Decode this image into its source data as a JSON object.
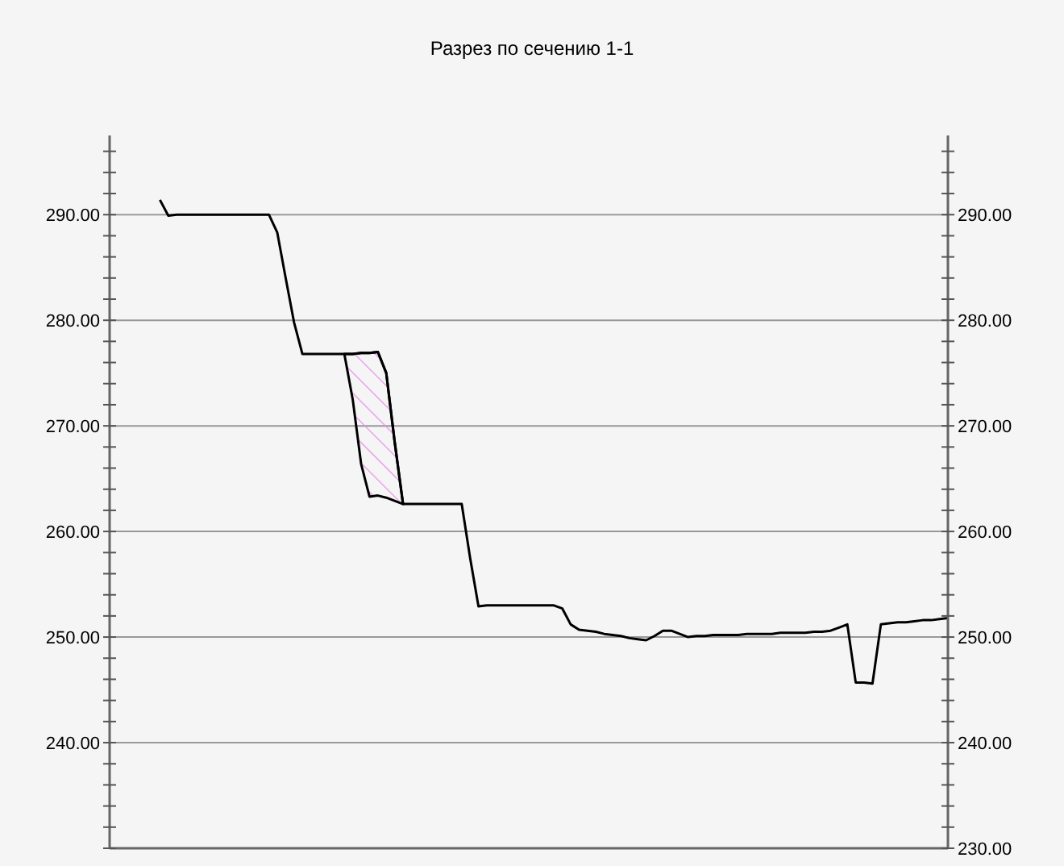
{
  "chart_data": {
    "type": "line",
    "title": "Разрез по сечению 1-1",
    "categories": [
      null,
      null,
      null,
      null,
      null,
      null,
      null,
      null,
      null,
      null,
      null,
      null,
      null,
      null,
      null,
      null,
      null,
      null,
      null,
      null,
      null,
      null,
      null,
      null,
      null,
      null,
      null,
      null,
      null,
      null,
      null,
      null,
      null,
      null,
      null,
      null,
      null,
      null,
      null,
      null,
      null,
      null,
      null,
      null,
      null,
      null,
      null,
      null,
      null,
      null,
      null,
      null,
      null,
      null,
      null,
      null,
      null,
      null,
      null,
      null,
      null,
      null,
      null,
      null,
      null,
      null,
      null,
      null,
      null,
      null,
      null,
      null,
      null,
      null,
      null,
      null,
      null,
      null,
      null,
      null,
      null,
      null,
      null,
      null,
      null,
      null,
      null,
      null,
      null,
      null,
      null,
      null,
      null,
      null,
      null,
      null,
      null,
      null,
      null,
      null,
      null
    ],
    "ylim": [
      230,
      297.5
    ],
    "y2lim": [
      230,
      297.5
    ],
    "tick_labels": "y",
    "grid": "y",
    "marker": "none",
    "line_style": "solid",
    "yticks": [
      {
        "value": 230,
        "label": null
      },
      {
        "value": 232,
        "label": null
      },
      {
        "value": 234,
        "label": null
      },
      {
        "value": 236,
        "label": null
      },
      {
        "value": 238,
        "label": null
      },
      {
        "value": 240,
        "label": "240.00"
      },
      {
        "value": 242,
        "label": null
      },
      {
        "value": 244,
        "label": null
      },
      {
        "value": 246,
        "label": null
      },
      {
        "value": 248,
        "label": null
      },
      {
        "value": 250,
        "label": "250.00"
      },
      {
        "value": 252,
        "label": null
      },
      {
        "value": 254,
        "label": null
      },
      {
        "value": 256,
        "label": null
      },
      {
        "value": 258,
        "label": null
      },
      {
        "value": 260,
        "label": "260.00"
      },
      {
        "value": 262,
        "label": null
      },
      {
        "value": 264,
        "label": null
      },
      {
        "value": 266,
        "label": null
      },
      {
        "value": 268,
        "label": null
      },
      {
        "value": 270,
        "label": "270.00"
      },
      {
        "value": 272,
        "label": null
      },
      {
        "value": 274,
        "label": null
      },
      {
        "value": 276,
        "label": null
      },
      {
        "value": 278,
        "label": null
      },
      {
        "value": 280,
        "label": "280.00"
      },
      {
        "value": 282,
        "label": null
      },
      {
        "value": 284,
        "label": null
      },
      {
        "value": 286,
        "label": null
      },
      {
        "value": 288,
        "label": null
      },
      {
        "value": 290,
        "label": "290.00"
      },
      {
        "value": 292,
        "label": null
      },
      {
        "value": 294,
        "label": null
      },
      {
        "value": 296,
        "label": null
      }
    ],
    "y2ticks": [
      {
        "value": 230,
        "label": "230.00"
      },
      {
        "value": 232,
        "label": null
      },
      {
        "value": 234,
        "label": null
      },
      {
        "value": 236,
        "label": null
      },
      {
        "value": 238,
        "label": null
      },
      {
        "value": 240,
        "label": "240.00"
      },
      {
        "value": 242,
        "label": null
      },
      {
        "value": 244,
        "label": null
      },
      {
        "value": 246,
        "label": null
      },
      {
        "value": 248,
        "label": null
      },
      {
        "value": 250,
        "label": "250.00"
      },
      {
        "value": 252,
        "label": null
      },
      {
        "value": 254,
        "label": null
      },
      {
        "value": 256,
        "label": null
      },
      {
        "value": 258,
        "label": null
      },
      {
        "value": 260,
        "label": "260.00"
      },
      {
        "value": 262,
        "label": null
      },
      {
        "value": 264,
        "label": null
      },
      {
        "value": 266,
        "label": null
      },
      {
        "value": 268,
        "label": null
      },
      {
        "value": 270,
        "label": "270.00"
      },
      {
        "value": 272,
        "label": null
      },
      {
        "value": 274,
        "label": null
      },
      {
        "value": 276,
        "label": null
      },
      {
        "value": 278,
        "label": null
      },
      {
        "value": 280,
        "label": "280.00"
      },
      {
        "value": 282,
        "label": null
      },
      {
        "value": 284,
        "label": null
      },
      {
        "value": 286,
        "label": null
      },
      {
        "value": 288,
        "label": null
      },
      {
        "value": 290,
        "label": "290.00"
      },
      {
        "value": 292,
        "label": null
      },
      {
        "value": 294,
        "label": null
      },
      {
        "value": 296,
        "label": null
      }
    ],
    "series": [
      {
        "color": "#000000",
        "values": [
          null,
          null,
          null,
          null,
          null,
          null,
          291.4,
          289.9,
          290.0,
          290.0,
          290.0,
          290.0,
          290.0,
          290.0,
          290.0,
          290.0,
          290.0,
          290.0,
          290.0,
          290.0,
          288.3,
          284.0,
          279.8,
          276.8,
          276.8,
          276.8,
          276.8,
          276.8,
          276.8,
          276.8,
          276.9,
          276.9,
          277.0,
          275.0,
          268.5,
          262.6,
          262.6,
          262.6,
          262.6,
          262.6,
          262.6,
          262.6,
          262.6,
          257.5,
          252.9,
          253.0,
          253.0,
          253.0,
          253.0,
          253.0,
          253.0,
          253.0,
          253.0,
          253.0,
          252.7,
          251.2,
          250.7,
          250.6,
          250.5,
          250.3,
          250.2,
          250.1,
          249.9,
          249.8,
          249.7,
          250.1,
          250.6,
          250.6,
          250.3,
          250.0,
          250.1,
          250.1,
          250.2,
          250.2,
          250.2,
          250.2,
          250.3,
          250.3,
          250.3,
          250.3,
          250.4,
          250.4,
          250.4,
          250.4,
          250.5,
          250.5,
          250.6,
          250.9,
          251.2,
          245.7,
          245.7,
          245.6,
          251.2,
          251.3,
          251.4,
          251.4,
          251.5,
          251.6,
          251.6,
          251.7,
          251.8
        ],
        "upper": [
          null,
          null,
          null,
          null,
          null,
          null,
          null,
          null,
          null,
          null,
          null,
          null,
          null,
          null,
          null,
          null,
          null,
          null,
          null,
          null,
          null,
          null,
          null,
          null,
          null,
          null,
          null,
          null,
          276.8,
          276.8,
          276.9,
          276.9,
          277.0,
          275.0,
          268.5,
          262.6,
          null,
          null,
          null,
          null,
          null,
          null,
          null,
          null,
          null,
          null,
          null,
          null,
          null,
          null,
          null,
          null,
          null,
          null,
          null,
          null,
          null,
          null,
          null,
          null,
          null,
          null,
          null,
          null,
          null,
          null,
          null,
          null,
          null,
          null,
          null,
          null,
          null,
          null,
          null,
          null,
          null,
          null,
          null,
          null,
          null,
          null,
          null,
          null,
          null,
          null,
          null,
          null,
          null,
          null,
          null,
          null,
          null,
          null,
          null,
          null,
          null,
          null,
          null,
          null,
          null
        ],
        "lower": [
          null,
          null,
          null,
          null,
          null,
          null,
          null,
          null,
          null,
          null,
          null,
          null,
          null,
          null,
          null,
          null,
          null,
          null,
          null,
          null,
          null,
          null,
          null,
          null,
          null,
          null,
          null,
          null,
          276.8,
          272.5,
          266.4,
          263.3,
          263.4,
          263.2,
          262.9,
          262.6,
          null,
          null,
          null,
          null,
          null,
          null,
          null,
          null,
          null,
          null,
          null,
          null,
          null,
          null,
          null,
          null,
          null,
          null,
          null,
          null,
          null,
          null,
          null,
          null,
          null,
          null,
          null,
          null,
          null,
          null,
          null,
          null,
          null,
          null,
          null,
          null,
          null,
          null,
          null,
          null,
          null,
          null,
          null,
          null,
          null,
          null,
          null,
          null,
          null,
          null,
          null,
          null,
          null,
          null,
          null,
          null,
          null,
          null,
          null,
          null,
          null,
          null,
          null,
          null,
          null
        ]
      }
    ]
  }
}
